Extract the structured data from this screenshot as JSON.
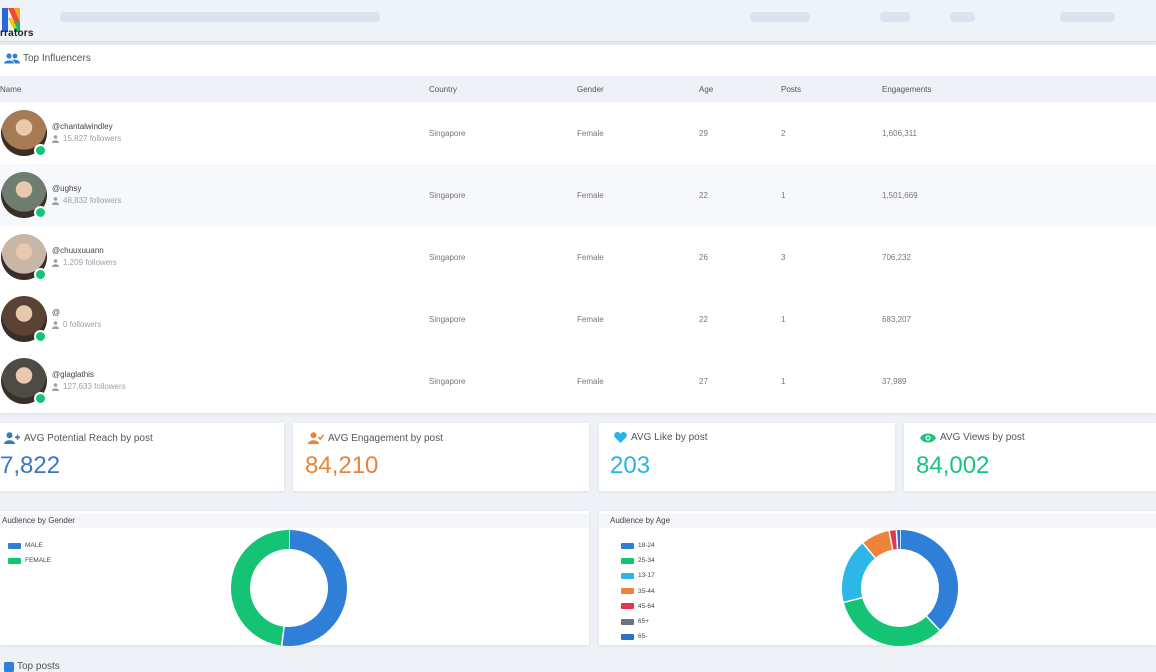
{
  "brand": {
    "logo_text": "rrators"
  },
  "influencers": {
    "title": "Top Influencers",
    "columns": [
      "Name",
      "Country",
      "Gender",
      "Age",
      "Posts",
      "Engagements"
    ],
    "rows": [
      {
        "handle": "@chantalwindley",
        "followers": "15,827 followers",
        "country": "Singapore",
        "gender": "Female",
        "age": "29",
        "posts": "2",
        "engagements": "1,606,311",
        "avatar_color": "#a57a55"
      },
      {
        "handle": "@ughsy",
        "followers": "48,832 followers",
        "country": "Singapore",
        "gender": "Female",
        "age": "22",
        "posts": "1",
        "engagements": "1,501,669",
        "avatar_color": "#6f7d70"
      },
      {
        "handle": "@chuuxuuann",
        "followers": "1,209 followers",
        "country": "Singapore",
        "gender": "Female",
        "age": "26",
        "posts": "3",
        "engagements": "706,232",
        "avatar_color": "#c8b7a6"
      },
      {
        "handle": "@",
        "followers": "0 followers",
        "country": "Singapore",
        "gender": "Female",
        "age": "22",
        "posts": "1",
        "engagements": "683,207",
        "avatar_color": "#5a4335"
      },
      {
        "handle": "@glaglathis",
        "followers": "127,633 followers",
        "country": "Singapore",
        "gender": "Female",
        "age": "27",
        "posts": "1",
        "engagements": "37,989",
        "avatar_color": "#4e4a44"
      }
    ]
  },
  "stats": [
    {
      "title": "AVG Potential Reach by post",
      "value": "7,822",
      "color": "#3a78c4",
      "icon": "add-user-icon"
    },
    {
      "title": "AVG Engagement by post",
      "value": "84,210",
      "color": "#e7843c",
      "icon": "user-check-icon"
    },
    {
      "title": "AVG Like by post",
      "value": "203",
      "color": "#2ab3e3",
      "icon": "heart-icon"
    },
    {
      "title": "AVG Views by post",
      "value": "84,002",
      "color": "#19c47e",
      "icon": "eye-icon"
    }
  ],
  "gender_chart": {
    "title": "Audience by Gender",
    "legend": [
      {
        "label": "MALE",
        "color": "#2f7ed8",
        "value": 52
      },
      {
        "label": "FEMALE",
        "color": "#14c474",
        "value": 48
      }
    ]
  },
  "age_chart": {
    "title": "Audience by Age",
    "legend": [
      {
        "label": "18-24",
        "color": "#2f7ed8",
        "value": 38
      },
      {
        "label": "25-34",
        "color": "#14c474",
        "value": 33
      },
      {
        "label": "13-17",
        "color": "#2db7e8",
        "value": 18
      },
      {
        "label": "35-44",
        "color": "#ee8439",
        "value": 8
      },
      {
        "label": "45-64",
        "color": "#e8354f",
        "value": 2
      },
      {
        "label": "65+",
        "color": "#6b7280",
        "value": 0
      },
      {
        "label": "65-",
        "color": "#2f6fc9",
        "value": 1
      }
    ]
  },
  "bottom": {
    "title": "Top posts"
  }
}
